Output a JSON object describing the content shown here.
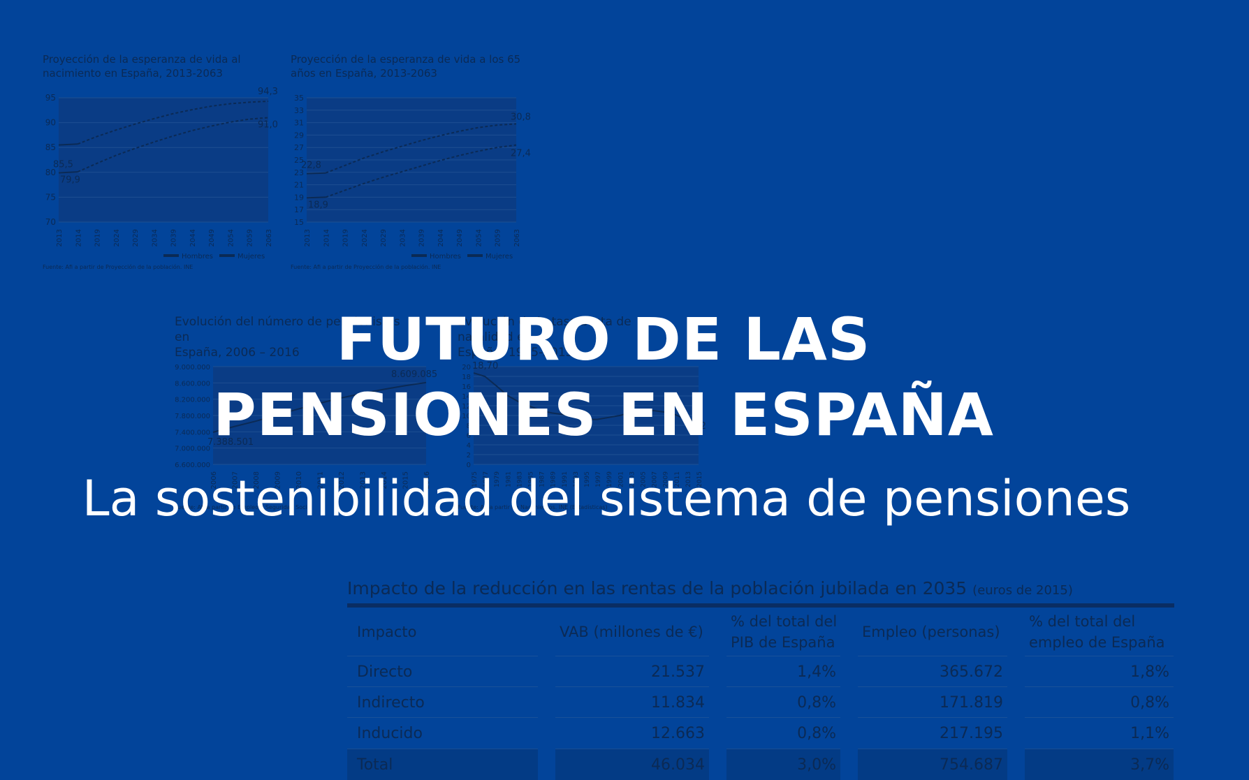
{
  "title": {
    "line1": "FUTURO DE LAS",
    "line2": "PENSIONES EN ESPAÑA"
  },
  "subtitle": "La sostenibilidad del sistema de pensiones",
  "background_charts": [
    {
      "title_line1": "Proyección de la esperanza de vida al",
      "title_line2": "nacimiento en España, 2013-2063",
      "source": "Fuente: Afi a partir de Proyección de la población. INE",
      "chart_data": {
        "type": "line",
        "x": [
          "2013",
          "2014",
          "2019",
          "2024",
          "2029",
          "2034",
          "2039",
          "2044",
          "2049",
          "2054",
          "2059",
          "2063"
        ],
        "yticks": [
          "95",
          "90",
          "85",
          "80",
          "75",
          "70"
        ],
        "ylim": [
          70,
          95
        ],
        "series": [
          {
            "name": "Hombres",
            "values": [
              79.9,
              80.1,
              81.8,
              83.4,
              84.8,
              86.1,
              87.3,
              88.4,
              89.3,
              90.1,
              90.7,
              91.0
            ]
          },
          {
            "name": "Mujeres",
            "values": [
              85.5,
              85.7,
              87.2,
              88.5,
              89.7,
              90.8,
              91.8,
              92.6,
              93.3,
              93.8,
              94.1,
              94.3
            ]
          }
        ],
        "labels": [
          "85,5",
          "79,9",
          "94,3",
          "91,0"
        ]
      }
    },
    {
      "title_line1": "Proyección de la esperanza de vida a los 65",
      "title_line2": "años en España, 2013-2063",
      "source": "Fuente: Afi a partir de Proyección de la población. INE",
      "chart_data": {
        "type": "line",
        "x": [
          "2013",
          "2014",
          "2019",
          "2024",
          "2029",
          "2034",
          "2039",
          "2044",
          "2049",
          "2054",
          "2059",
          "2063"
        ],
        "yticks": [
          "35",
          "33",
          "31",
          "29",
          "27",
          "25",
          "23",
          "21",
          "19",
          "17",
          "15"
        ],
        "ylim": [
          15,
          35
        ],
        "series": [
          {
            "name": "Hombres",
            "values": [
              18.9,
              19.0,
              20.1,
              21.2,
              22.2,
              23.1,
              24.0,
              24.9,
              25.7,
              26.4,
              27.0,
              27.4
            ]
          },
          {
            "name": "Mujeres",
            "values": [
              22.8,
              22.9,
              24.1,
              25.3,
              26.3,
              27.2,
              28.1,
              28.9,
              29.6,
              30.2,
              30.6,
              30.8
            ]
          }
        ],
        "labels": [
          "22,8",
          "18,9",
          "30,8",
          "27,4"
        ]
      }
    },
    {
      "title_line1": "Evolución del número de pensionistas en",
      "title_line2": "España, 2006 – 2016",
      "source": "Fuente: Afi a partir de Empleo y Seguridad Social",
      "chart_data": {
        "type": "line",
        "x": [
          "2006",
          "2007",
          "2008",
          "2009",
          "2010",
          "2011",
          "2012",
          "2013",
          "2014",
          "2015",
          "2016"
        ],
        "yticks": [
          "9.000.000",
          "8.600.000",
          "8.200.000",
          "7.800.000",
          "7.400.000",
          "7.000.000",
          "6.600.000"
        ],
        "ylim": [
          6600000,
          9000000
        ],
        "series": [
          {
            "name": "",
            "values": [
              7388501,
              7530000,
              7660000,
              7810000,
              7960000,
              8100000,
              8230000,
              8340000,
              8440000,
              8530000,
              8609085
            ]
          }
        ],
        "labels": [
          "8.609.085",
          "7.388.501"
        ]
      }
    },
    {
      "title_line1": "Evolución de la tasa bruta de natalidad en",
      "title_line2": "España, 1975-2015",
      "source": "Fuente: Afi a partir de Nacimientos. INE (Estadísticas)",
      "chart_data": {
        "type": "line",
        "x": [
          "1975",
          "1977",
          "1979",
          "1981",
          "1983",
          "1985",
          "1987",
          "1989",
          "1991",
          "1993",
          "1995",
          "1997",
          "1999",
          "2001",
          "2003",
          "2005",
          "2007",
          "2009",
          "2011",
          "2013",
          "2015"
        ],
        "yticks": [
          "20",
          "18",
          "16",
          "14",
          "12",
          "10",
          "8",
          "6",
          "4",
          "2",
          "0"
        ],
        "ylim": [
          0,
          20
        ],
        "series": [
          {
            "name": "",
            "values": [
              18.7,
              18.0,
              16.1,
              14.1,
              12.8,
              11.9,
              11.0,
              10.5,
              10.2,
              9.8,
              9.2,
              9.2,
              9.6,
              10.0,
              10.6,
              10.8,
              11.0,
              10.7,
              10.1,
              9.1,
              9.02
            ]
          }
        ],
        "labels": [
          "18,70",
          "9,02"
        ]
      }
    }
  ],
  "table": {
    "title": "Impacto de la reducción en las rentas de la población jubilada en 2035",
    "title_unit": "(euros de 2015)",
    "headers": [
      {
        "line1": "Impacto",
        "line2": ""
      },
      {
        "line1": "VAB (millones de €)",
        "line2": ""
      },
      {
        "line1": "% del total del",
        "line2": "PIB de España"
      },
      {
        "line1": "Empleo (personas)",
        "line2": ""
      },
      {
        "line1": "% del total del",
        "line2": "empleo de España"
      }
    ],
    "rows": [
      [
        "Directo",
        "21.537",
        "1,4%",
        "365.672",
        "1,8%"
      ],
      [
        "Indirecto",
        "11.834",
        "0,8%",
        "171.819",
        "0,8%"
      ],
      [
        "Inducido",
        "12.663",
        "0,8%",
        "217.195",
        "1,1%"
      ],
      [
        "Total",
        "46.034",
        "3,0%",
        "754.687",
        "3,7%"
      ]
    ]
  },
  "colors": {
    "background": "#02449a",
    "title_text": "#ffffff",
    "faded_content": "#0b2a55",
    "plot_area": "#0a3c85"
  }
}
